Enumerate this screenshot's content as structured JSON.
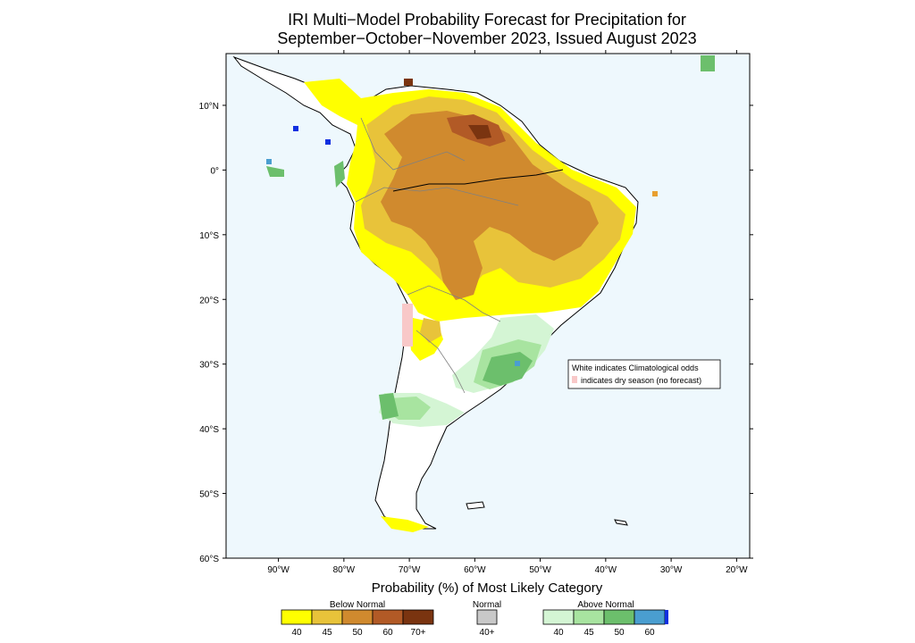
{
  "title": {
    "line1": "IRI Multi−Model Probability Forecast for Precipitation for",
    "line2": "September−October−November 2023, Issued August 2023"
  },
  "axes": {
    "lat_labels": [
      "10°N",
      "0°",
      "10°S",
      "20°S",
      "30°S",
      "40°S",
      "50°S",
      "60°S"
    ],
    "lon_labels": [
      "90°W",
      "80°W",
      "70°W",
      "60°W",
      "50°W",
      "40°W",
      "30°W",
      "20°W"
    ],
    "lat_range": [
      -60,
      18
    ],
    "lon_range": [
      -98,
      -18
    ]
  },
  "annotation": {
    "line1": "White indicates Climatological odds",
    "line2": "indicates dry season (no forecast)"
  },
  "legend": {
    "title": "Probability (%) of Most Likely Category",
    "below_label": "Below Normal",
    "normal_label": "Normal",
    "above_label": "Above Normal",
    "below_ticks": [
      "40",
      "45",
      "50",
      "60",
      "70+"
    ],
    "normal_ticks": [
      "40+"
    ],
    "above_ticks": [
      "40",
      "45",
      "50",
      "60"
    ],
    "below_colors": [
      "#ffff00",
      "#e8c33a",
      "#d08a2e",
      "#b25a26",
      "#7a3410"
    ],
    "normal_colors": [
      "#c8c8c8"
    ],
    "above_colors": [
      "#d4f5d4",
      "#a8e4a0",
      "#6cbf6c",
      "#4a9ed0"
    ],
    "above_end_color": "#1030e0"
  },
  "colors": {
    "ocean": "#eef8fd",
    "land_climatology": "#ffffff",
    "dry_season": "#f8c8c8",
    "coastline": "#000000",
    "border": "#808080"
  }
}
